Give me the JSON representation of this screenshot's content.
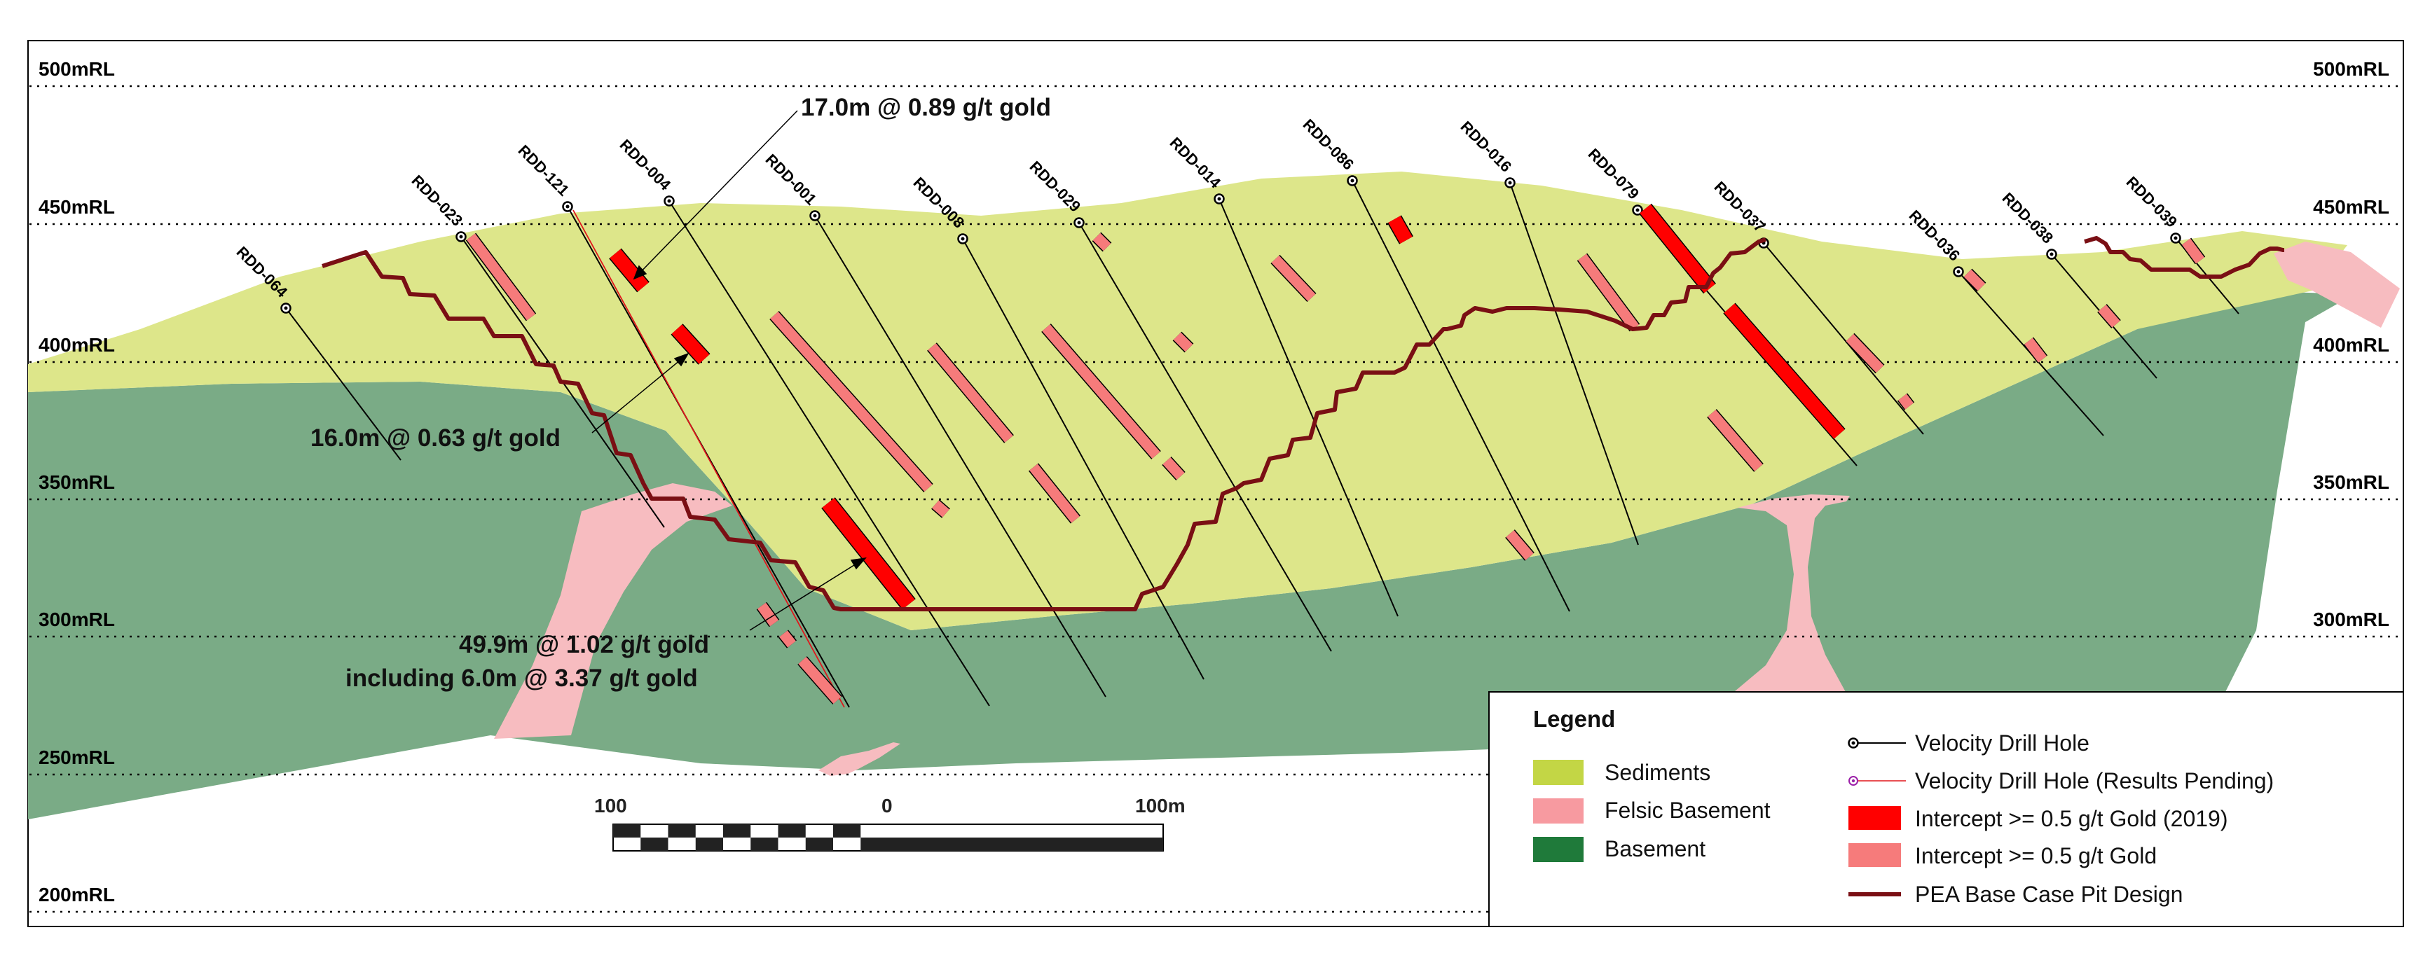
{
  "levels": [
    "500mRL",
    "450mRL",
    "400mRL",
    "350mRL",
    "300mRL",
    "250mRL",
    "200mRL"
  ],
  "holes": [
    "RDD-064",
    "RDD-023",
    "RDD-121",
    "RDD-004",
    "RDD-001",
    "RDD-008",
    "RDD-029",
    "RDD-014",
    "RDD-086",
    "RDD-016",
    "RDD-079",
    "RDD-037",
    "RDD-036",
    "RDD-038",
    "RDD-039"
  ],
  "annotations": {
    "top": "17.0m @ 0.89 g/t gold",
    "middle": "16.0m @ 0.63 g/t gold",
    "bottom1": "49.9m @ 1.02 g/t gold",
    "bottom2": "including 6.0m @ 3.37 g/t gold"
  },
  "scale": {
    "left": "100",
    "mid": "0",
    "right": "100m"
  },
  "legend": {
    "title": "Legend",
    "items": [
      {
        "label": "Sediments",
        "color": "#c3d645"
      },
      {
        "label": "Felsic Basement",
        "color": "#f79aa0"
      },
      {
        "label": "Basement",
        "color": "#1f7a3a"
      },
      {
        "label": "Velocity Drill Hole"
      },
      {
        "label": "Velocity Drill Hole (Results Pending)"
      },
      {
        "label": "Intercept >= 0.5 g/t Gold (2019)",
        "color": "#ff0000"
      },
      {
        "label": "Intercept >= 0.5 g/t Gold",
        "color": "#f67b7b"
      },
      {
        "label": "PEA Base Case Pit Design",
        "color": "#7a0f14"
      }
    ]
  },
  "colors": {
    "sediment": "#dde68a",
    "basement": "#7aab86",
    "felsic": "#f7bcc0",
    "intercept2019": "#ff0000",
    "intercept": "#f67b7b",
    "pit": "#7a0f14"
  }
}
